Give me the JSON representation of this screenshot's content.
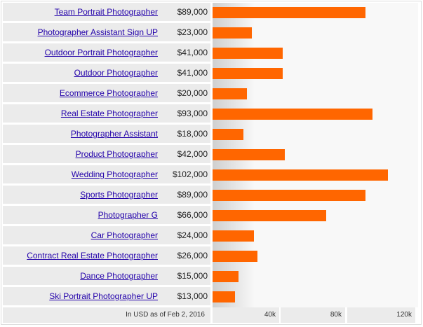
{
  "chart_data": {
    "type": "bar",
    "orientation": "horizontal",
    "title": "",
    "xlabel": "In USD as of Feb 2, 2016",
    "ylabel": "",
    "xlim": [
      0,
      120000
    ],
    "x_ticks": [
      "40k",
      "80k",
      "120k"
    ],
    "grid": false,
    "bar_color": "#ff6600",
    "categories": [
      "Team Portrait Photographer",
      "Photographer Assistant Sign UP",
      "Outdoor Portrait Photographer",
      "Outdoor Photographer",
      "Ecommerce Photographer",
      "Real Estate Photographer",
      "Photographer Assistant",
      "Product Photographer",
      "Wedding Photographer",
      "Sports Photographer",
      "Photographer G",
      "Car Photographer",
      "Contract Real Estate Photographer",
      "Dance Photographer",
      "Ski Portrait Photographer UP"
    ],
    "values": [
      89000,
      23000,
      41000,
      41000,
      20000,
      93000,
      18000,
      42000,
      102000,
      89000,
      66000,
      24000,
      26000,
      15000,
      13000
    ]
  },
  "rows": [
    {
      "label": "Team Portrait Photographer",
      "value": "$89,000",
      "amount": 89000
    },
    {
      "label": "Photographer Assistant Sign UP",
      "value": "$23,000",
      "amount": 23000
    },
    {
      "label": "Outdoor Portrait Photographer",
      "value": "$41,000",
      "amount": 41000
    },
    {
      "label": "Outdoor Photographer",
      "value": "$41,000",
      "amount": 41000
    },
    {
      "label": "Ecommerce Photographer",
      "value": "$20,000",
      "amount": 20000
    },
    {
      "label": "Real Estate Photographer",
      "value": "$93,000",
      "amount": 93000
    },
    {
      "label": "Photographer Assistant",
      "value": "$18,000",
      "amount": 18000
    },
    {
      "label": "Product Photographer",
      "value": "$42,000",
      "amount": 42000
    },
    {
      "label": "Wedding Photographer",
      "value": "$102,000",
      "amount": 102000
    },
    {
      "label": "Sports Photographer",
      "value": "$89,000",
      "amount": 89000
    },
    {
      "label": "Photographer G",
      "value": "$66,000",
      "amount": 66000
    },
    {
      "label": "Car Photographer",
      "value": "$24,000",
      "amount": 24000
    },
    {
      "label": "Contract Real Estate Photographer",
      "value": "$26,000",
      "amount": 26000
    },
    {
      "label": "Dance Photographer",
      "value": "$15,000",
      "amount": 15000
    },
    {
      "label": "Ski Portrait Photographer UP",
      "value": "$13,000",
      "amount": 13000
    }
  ],
  "footer": {
    "note": "In USD as of Feb 2, 2016",
    "ticks": [
      "40k",
      "80k",
      "120k"
    ]
  }
}
